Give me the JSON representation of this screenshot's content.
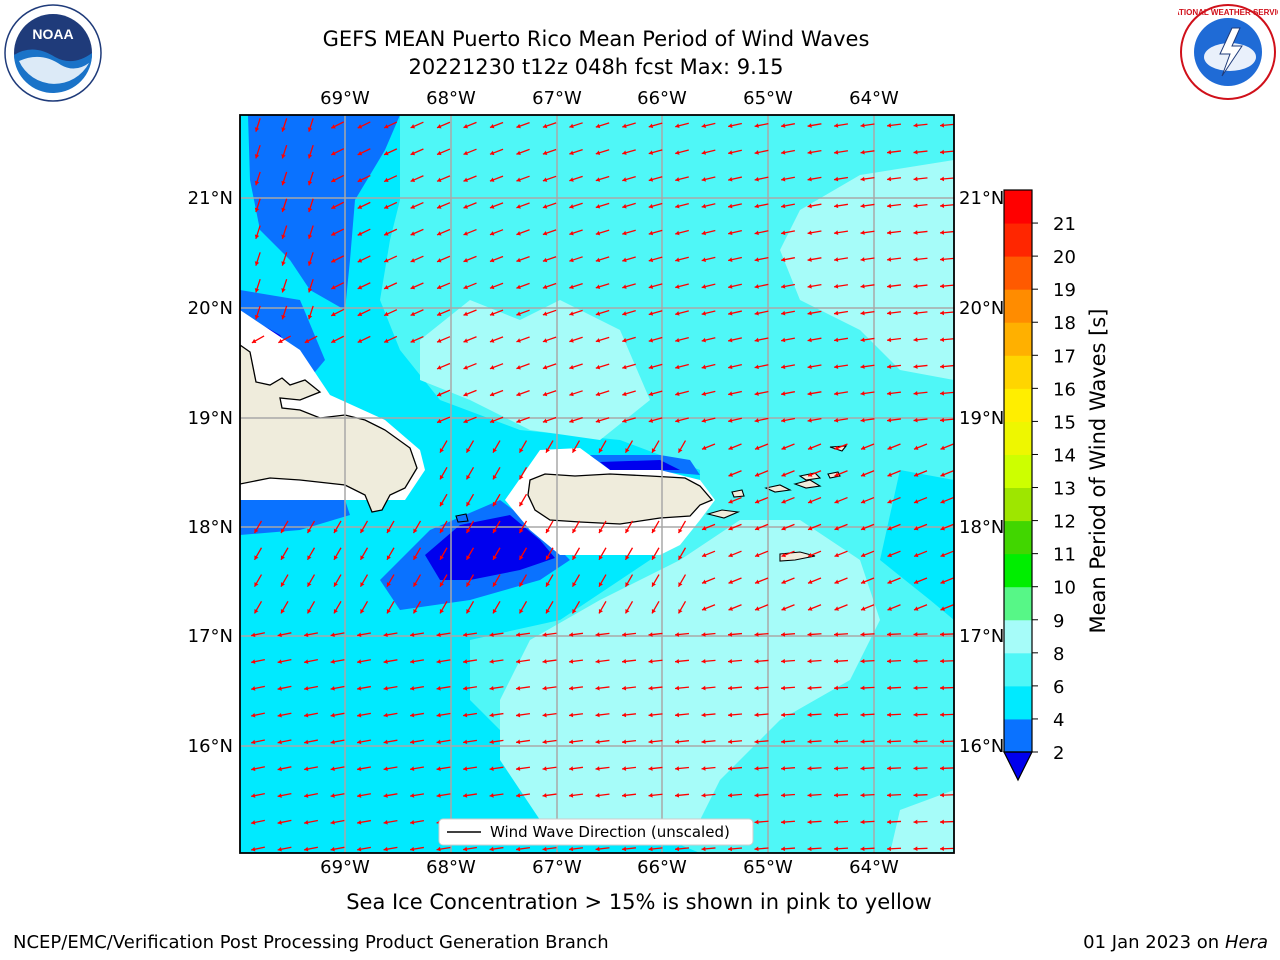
{
  "title": {
    "line1": "GEFS MEAN Puerto Rico Mean Period of Wind Waves",
    "line2": "20221230 t12z 048h fcst   Max: 9.15"
  },
  "map": {
    "lon_labels": [
      "69°W",
      "68°W",
      "67°W",
      "66°W",
      "65°W",
      "64°W"
    ],
    "lat_labels": [
      "21°N",
      "20°N",
      "19°N",
      "18°N",
      "17°N",
      "16°N"
    ],
    "legend_label": "Wind Wave Direction (unscaled)",
    "arrow_color": "#ff0000"
  },
  "colorbar": {
    "label": "Mean Period of Wind Waves [s]",
    "ticks": [
      "2",
      "4",
      "6",
      "8",
      "9",
      "10",
      "11",
      "12",
      "13",
      "14",
      "15",
      "16",
      "17",
      "18",
      "19",
      "20",
      "21"
    ],
    "colors": [
      "#0a72ff",
      "#00eaff",
      "#4ff7f7",
      "#a6fcf9",
      "#57f787",
      "#00ee00",
      "#41d600",
      "#9ee600",
      "#cdff00",
      "#eef700",
      "#ffee00",
      "#ffd500",
      "#ffb000",
      "#ff8c00",
      "#ff5a00",
      "#ff2600",
      "#ff0000"
    ],
    "extend_color": "#0000ee"
  },
  "footer": {
    "subnote": "Sea Ice Concentration > 15% is shown in pink to yellow",
    "org": "NCEP/EMC/Verification Post Processing Product Generation Branch",
    "date": "01 Jan 2023 on",
    "machine": "Hera"
  },
  "logos": {
    "noaa_text": "NOAA",
    "nws_text": "NATIONAL WEATHER SERVICE"
  }
}
